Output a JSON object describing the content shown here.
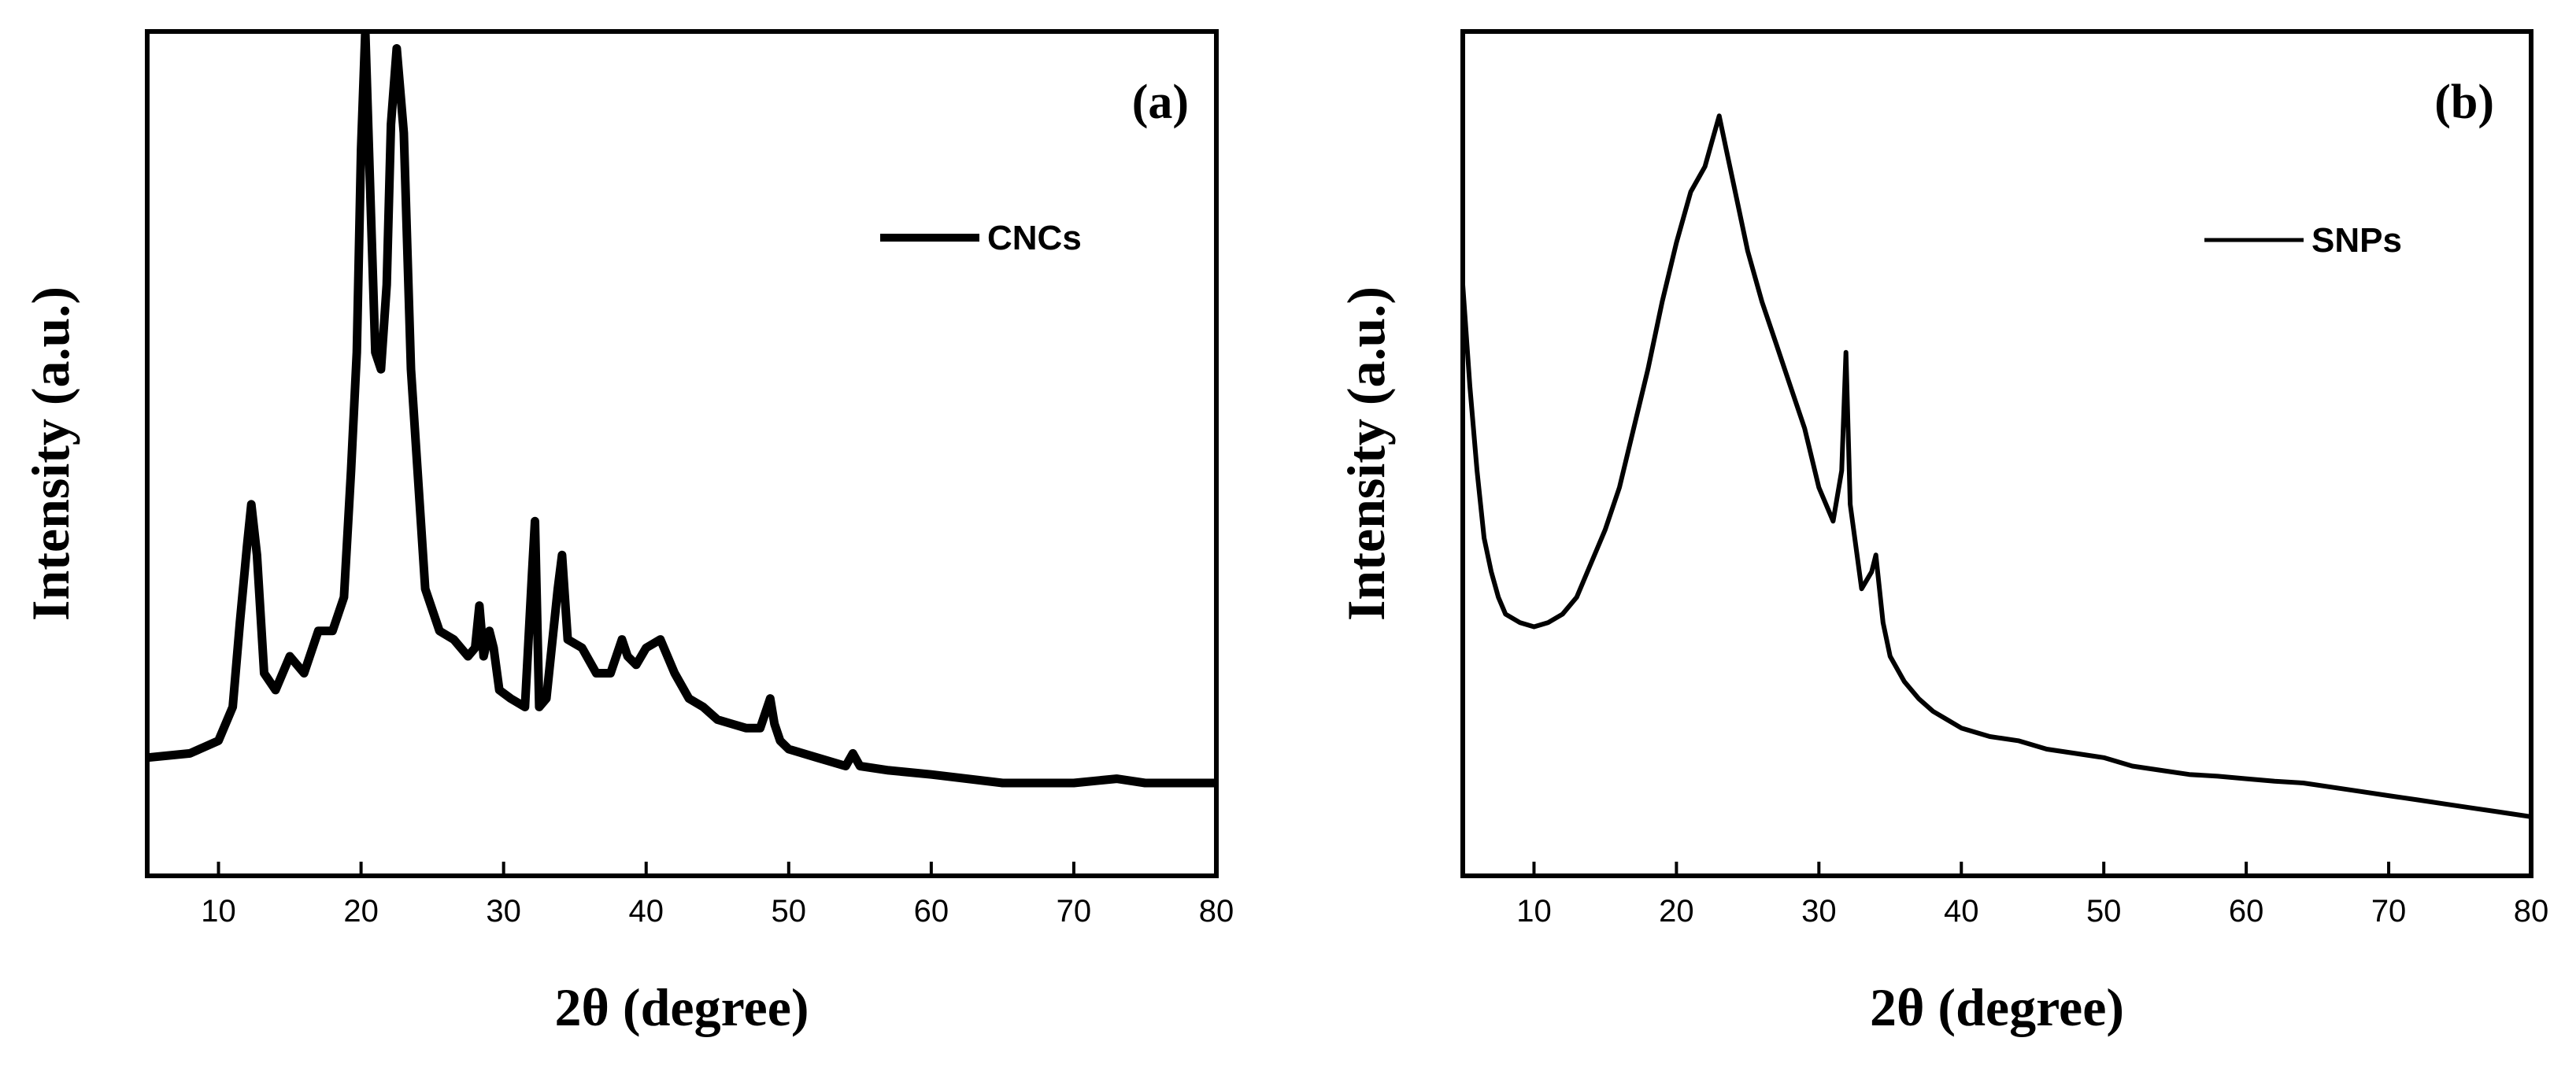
{
  "chart_data": [
    {
      "type": "line",
      "panel_label": "(a)",
      "xlabel": "2θ (degree)",
      "ylabel": "Intensity (a.u.)",
      "xlim": [
        5,
        80
      ],
      "ylim": [
        0,
        100
      ],
      "xticks": [
        10,
        20,
        30,
        40,
        50,
        60,
        70,
        80
      ],
      "yticks_shown": false,
      "legend": {
        "label": "CNCs",
        "position": "top-right"
      },
      "series": [
        {
          "name": "CNCs",
          "x": [
            5,
            8,
            10,
            11,
            11.5,
            12,
            12.3,
            12.7,
            13.2,
            14,
            15,
            16,
            17,
            18,
            18.8,
            19.3,
            19.7,
            20,
            20.3,
            20.7,
            21,
            21.4,
            21.8,
            22.1,
            22.5,
            23,
            23.5,
            24.5,
            25.5,
            26.5,
            27.5,
            28,
            28.3,
            28.6,
            29,
            29.3,
            29.7,
            30.5,
            31.5,
            32,
            32.2,
            32.5,
            33,
            33.8,
            34.1,
            34.5,
            35.5,
            36.5,
            37.5,
            38.3,
            38.7,
            39.3,
            40,
            41,
            42,
            43,
            44,
            45,
            46,
            47,
            48,
            48.7,
            49,
            49.4,
            50,
            52,
            54,
            54.5,
            55,
            57,
            60,
            65,
            70,
            73,
            75,
            80
          ],
          "y": [
            14,
            14.5,
            16,
            20,
            30,
            39,
            44,
            38,
            24,
            22,
            26,
            24,
            29,
            29,
            33,
            48,
            62,
            86,
            100,
            78,
            62,
            60,
            70,
            89,
            98,
            88,
            60,
            34,
            29,
            28,
            26,
            27,
            32,
            26,
            29,
            27,
            22,
            21,
            20,
            36,
            42,
            20,
            21,
            34,
            38,
            28,
            27,
            24,
            24,
            28,
            26,
            25,
            27,
            28,
            24,
            21,
            20,
            18.5,
            18,
            17.5,
            17.5,
            21,
            18,
            16,
            15,
            14,
            13,
            14.5,
            13,
            12.5,
            12,
            11,
            11,
            11.5,
            11,
            11
          ]
        }
      ]
    },
    {
      "type": "line",
      "panel_label": "(b)",
      "xlabel": "2θ (degree)",
      "ylabel": "Intensity (a.u.)",
      "xlim": [
        5,
        80
      ],
      "ylim": [
        0,
        100
      ],
      "xticks": [
        10,
        20,
        30,
        40,
        50,
        60,
        70,
        80
      ],
      "yticks_shown": false,
      "legend": {
        "label": "SNPs",
        "position": "top-right"
      },
      "series": [
        {
          "name": "SNPs",
          "x": [
            5,
            5.5,
            6,
            6.5,
            7,
            7.5,
            8,
            9,
            10,
            11,
            12,
            13,
            14,
            15,
            16,
            17,
            18,
            19,
            20,
            21,
            22,
            22.5,
            23,
            23.5,
            24,
            25,
            26,
            27,
            28,
            29,
            30,
            31,
            31.6,
            31.9,
            32.2,
            33,
            33.7,
            34,
            34.5,
            35,
            36,
            37,
            38,
            39,
            40,
            42,
            44,
            46,
            48,
            50,
            52,
            54,
            56,
            58,
            60,
            62,
            64,
            66,
            68,
            70,
            72,
            74,
            76,
            78,
            80
          ],
          "y": [
            70,
            58,
            48,
            40,
            36,
            33,
            31,
            30,
            29.5,
            30,
            31,
            33,
            37,
            41,
            46,
            53,
            60,
            68,
            75,
            81,
            84,
            87,
            90,
            86,
            82,
            74,
            68,
            63,
            58,
            53,
            46,
            42,
            48,
            62,
            44,
            34,
            36,
            38,
            30,
            26,
            23,
            21,
            19.5,
            18.5,
            17.5,
            16.5,
            16,
            15,
            14.5,
            14,
            13,
            12.5,
            12,
            11.8,
            11.5,
            11.2,
            11,
            10.5,
            10,
            9.5,
            9,
            8.5,
            8,
            7.5,
            7
          ]
        }
      ]
    }
  ],
  "style": {
    "line_color": "#000000",
    "background": "#ffffff"
  }
}
